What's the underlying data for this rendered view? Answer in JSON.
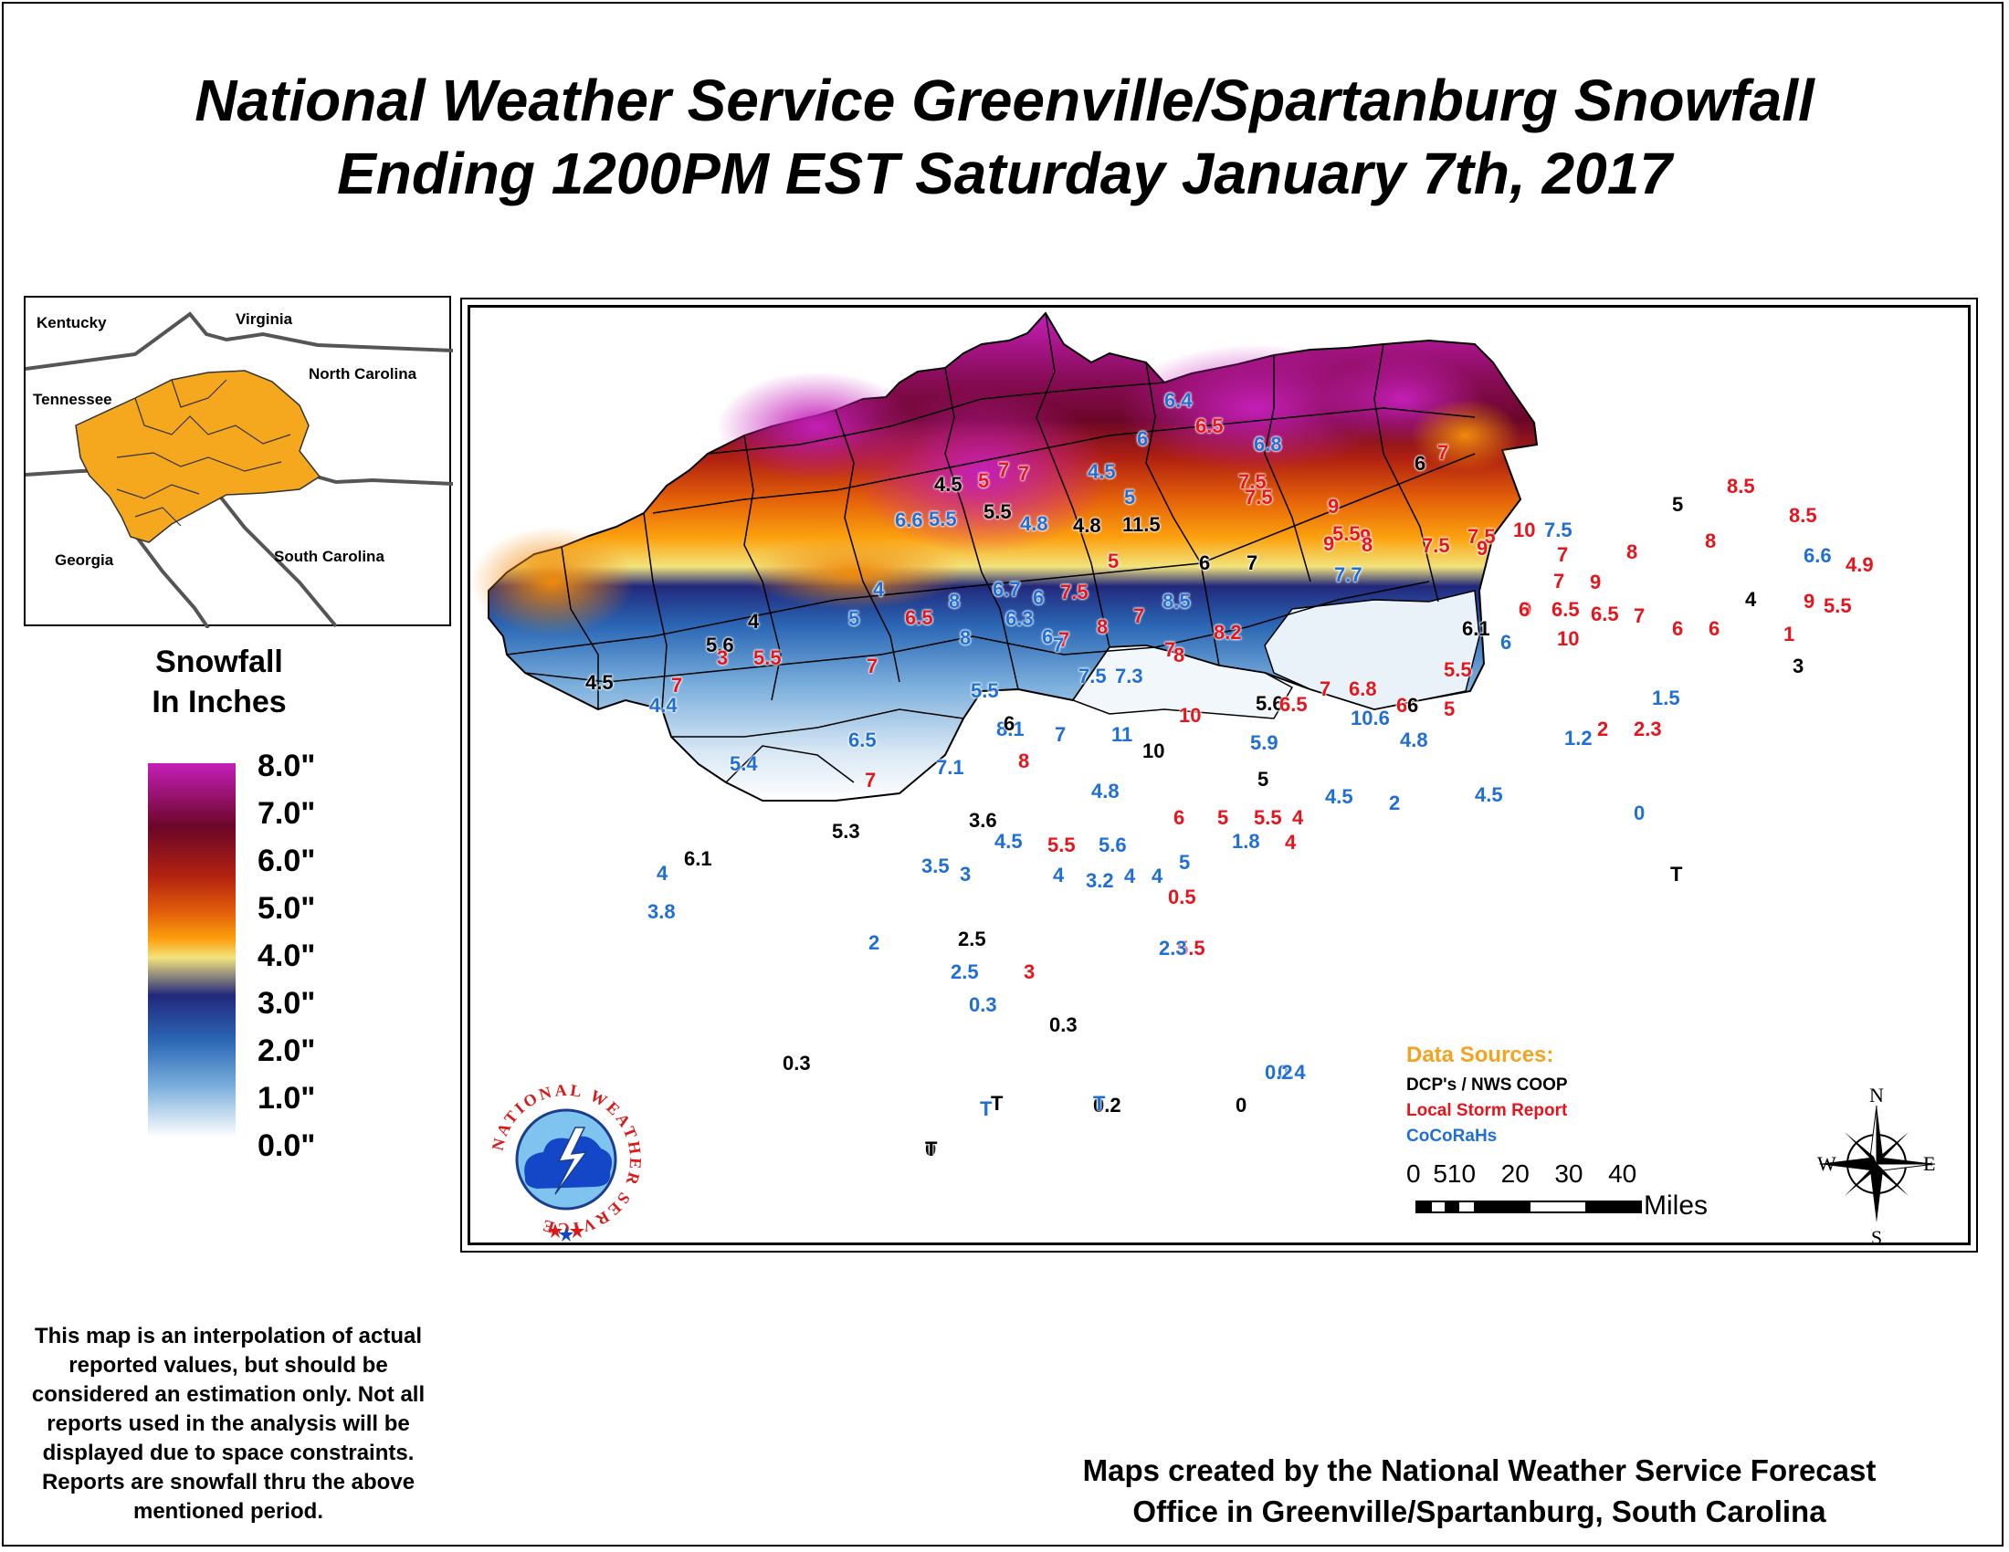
{
  "title": {
    "line1": "National Weather Service Greenville/Spartanburg Snowfall",
    "line2": "Ending 1200PM EST Saturday January 7th, 2017"
  },
  "inset": {
    "labels": [
      "Kentucky",
      "Virginia",
      "North Carolina",
      "Tennessee",
      "Georgia",
      "South Carolina"
    ],
    "highlight_color": "#f5a71d"
  },
  "legend": {
    "title_line1": "Snowfall",
    "title_line2": "In Inches",
    "labels": [
      "8.0\"",
      "7.0\"",
      "6.0\"",
      "5.0\"",
      "4.0\"",
      "3.0\"",
      "2.0\"",
      "1.0\"",
      "0.0\""
    ]
  },
  "data_sources": {
    "title": "Data Sources:",
    "items": [
      {
        "label": "DCP's / NWS COOP",
        "color": "#000000"
      },
      {
        "label": "Local Storm Report",
        "color": "#e8141c"
      },
      {
        "label": "CoCoRaHs",
        "color": "#1f6fd6"
      }
    ]
  },
  "scale": {
    "ticks": [
      "0",
      "510",
      "20",
      "30",
      "40"
    ],
    "units": "Miles"
  },
  "compass": {
    "n": "N",
    "s": "S",
    "e": "E",
    "w": "W"
  },
  "logo": {
    "text": "NATIONAL WEATHER SERVICE"
  },
  "disclaimer": "This map is an interpolation of actual reported values, but should be considered an estimation only. Not all reports used in the analysis will be displayed due to space constraints. Reports are snowfall thru the above mentioned period.",
  "credit": {
    "line1": "Maps created by the National Weather Service Forecast",
    "line2": "Office in Greenville/Spartanburg, South Carolina"
  },
  "reports": [
    [
      "6.4",
      "b"
    ],
    [
      "6.5",
      "r"
    ],
    [
      "6",
      "b"
    ],
    [
      "6.8",
      "b"
    ],
    [
      "6",
      "k"
    ],
    [
      "7",
      "r"
    ],
    [
      "7.5",
      "r"
    ],
    [
      "9",
      "r"
    ],
    [
      "9",
      "r"
    ],
    [
      "7.5",
      "r"
    ],
    [
      "4.5",
      "k"
    ],
    [
      "5",
      "r"
    ],
    [
      "7",
      "r"
    ],
    [
      "4.5",
      "b"
    ],
    [
      "5",
      "b"
    ],
    [
      "7.5",
      "r"
    ],
    [
      "5.5",
      "r"
    ],
    [
      "5",
      "k"
    ],
    [
      "8",
      "r"
    ],
    [
      "8.5",
      "r"
    ],
    [
      "6.6",
      "b"
    ],
    [
      "5.5",
      "b"
    ],
    [
      "5.5",
      "k"
    ],
    [
      "4.8",
      "b"
    ],
    [
      "4.8",
      "k"
    ],
    [
      "11.5",
      "k"
    ],
    [
      "9",
      "r"
    ],
    [
      "8",
      "r"
    ],
    [
      "7.5",
      "r"
    ],
    [
      "9",
      "r"
    ],
    [
      "10",
      "r"
    ],
    [
      "7.5",
      "b"
    ],
    [
      "8",
      "r"
    ],
    [
      "7",
      "r"
    ],
    [
      "8.5",
      "r"
    ],
    [
      "6.6",
      "b"
    ],
    [
      "4.9",
      "r"
    ],
    [
      "5",
      "r"
    ],
    [
      "6",
      "k"
    ],
    [
      "7",
      "k"
    ],
    [
      "7.7",
      "b"
    ],
    [
      "9",
      "r"
    ],
    [
      "7",
      "r"
    ],
    [
      "9",
      "r"
    ],
    [
      "4",
      "b"
    ],
    [
      "6.7",
      "b"
    ],
    [
      "6",
      "b"
    ],
    [
      "7.5",
      "r"
    ],
    [
      "7",
      "r"
    ],
    [
      "8.5",
      "b"
    ],
    [
      "5",
      "b"
    ],
    [
      "8",
      "b"
    ],
    [
      "6.5",
      "r"
    ],
    [
      "6.3",
      "b"
    ],
    [
      "6",
      "b"
    ],
    [
      "7",
      "r"
    ],
    [
      "8",
      "r"
    ],
    [
      "8.2",
      "r"
    ],
    [
      "7",
      "r"
    ],
    [
      "6.1",
      "k"
    ],
    [
      "6",
      "b"
    ],
    [
      "9",
      "r"
    ],
    [
      "10",
      "r"
    ],
    [
      "6",
      "r"
    ],
    [
      "6.5",
      "r"
    ],
    [
      "6.5",
      "r"
    ],
    [
      "7",
      "r"
    ],
    [
      "6",
      "r"
    ],
    [
      "6",
      "r"
    ],
    [
      "4",
      "k"
    ],
    [
      "5.5",
      "r"
    ],
    [
      "1",
      "r"
    ],
    [
      "3",
      "k"
    ],
    [
      "5.6",
      "k"
    ],
    [
      "3",
      "r"
    ],
    [
      "5.5",
      "r"
    ],
    [
      "4",
      "k"
    ],
    [
      "7",
      "r"
    ],
    [
      "8",
      "b"
    ],
    [
      "7",
      "b"
    ],
    [
      "7.5",
      "b"
    ],
    [
      "7.3",
      "b"
    ],
    [
      "8",
      "r"
    ],
    [
      "10",
      "r"
    ],
    [
      "5.5",
      "r"
    ],
    [
      "4.5",
      "k"
    ],
    [
      "4.4",
      "b"
    ],
    [
      "7",
      "r"
    ],
    [
      "5.5",
      "b"
    ],
    [
      "5.6",
      "k"
    ],
    [
      "6.5",
      "r"
    ],
    [
      "7",
      "r"
    ],
    [
      "6.8",
      "r"
    ],
    [
      "6",
      "r"
    ],
    [
      "6",
      "k"
    ],
    [
      "5",
      "r"
    ],
    [
      "1.5",
      "b"
    ],
    [
      "6.5",
      "b"
    ],
    [
      "8.1",
      "b"
    ],
    [
      "6",
      "k"
    ],
    [
      "7",
      "b"
    ],
    [
      "11",
      "b"
    ],
    [
      "10",
      "k"
    ],
    [
      "5.9",
      "b"
    ],
    [
      "10.6",
      "b"
    ],
    [
      "4.8",
      "b"
    ],
    [
      "1.2",
      "b"
    ],
    [
      "2",
      "r"
    ],
    [
      "2.3",
      "r"
    ],
    [
      "5.4",
      "b"
    ],
    [
      "7",
      "r"
    ],
    [
      "7.1",
      "b"
    ],
    [
      "8",
      "r"
    ],
    [
      "4.8",
      "b"
    ],
    [
      "5",
      "k"
    ],
    [
      "4.5",
      "b"
    ],
    [
      "2",
      "b"
    ],
    [
      "4.5",
      "b"
    ],
    [
      "5.3",
      "k"
    ],
    [
      "3.6",
      "k"
    ],
    [
      "4.5",
      "b"
    ],
    [
      "5.5",
      "r"
    ],
    [
      "5.6",
      "b"
    ],
    [
      "6",
      "r"
    ],
    [
      "5",
      "r"
    ],
    [
      "5.5",
      "r"
    ],
    [
      "4",
      "r"
    ],
    [
      "0",
      "b"
    ],
    [
      "6.1",
      "k"
    ],
    [
      "4",
      "b"
    ],
    [
      "3.5",
      "b"
    ],
    [
      "3",
      "b"
    ],
    [
      "4",
      "b"
    ],
    [
      "4",
      "b"
    ],
    [
      "4",
      "b"
    ],
    [
      "5",
      "b"
    ],
    [
      "1.8",
      "b"
    ],
    [
      "4",
      "r"
    ],
    [
      "5.5",
      "r"
    ],
    [
      "3.2",
      "b"
    ],
    [
      "0.5",
      "r"
    ],
    [
      "2",
      "b"
    ],
    [
      "T",
      "k"
    ],
    [
      "3.8",
      "b"
    ],
    [
      "2.5",
      "k"
    ],
    [
      "2.5",
      "b"
    ],
    [
      "3",
      "r"
    ],
    [
      "2.3",
      "b"
    ],
    [
      "0.3",
      "b"
    ],
    [
      "0.3",
      "k"
    ],
    [
      "0.4",
      "b"
    ],
    [
      "0.2",
      "k"
    ],
    [
      "T",
      "k"
    ],
    [
      "0",
      "k"
    ],
    [
      "T",
      "b"
    ],
    [
      "0.3",
      "k"
    ],
    [
      "0.2",
      "b"
    ],
    [
      "0",
      "k"
    ],
    [
      "T",
      "b"
    ],
    [
      "T",
      "k"
    ],
    [
      "7",
      "r"
    ]
  ]
}
